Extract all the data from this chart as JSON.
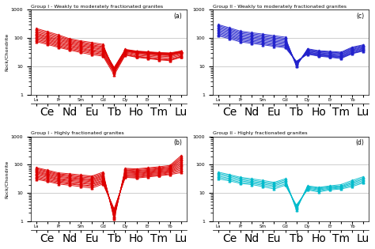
{
  "panels": [
    {
      "label": "(a)",
      "title": "Group I - Weakly to moderately fractionated granites",
      "color": "#dd0000",
      "ylim": [
        1,
        1000
      ],
      "data": [
        [
          220,
          170,
          130,
          95,
          80,
          70,
          60,
          6,
          35,
          30,
          28,
          26,
          25,
          30
        ],
        [
          200,
          155,
          118,
          88,
          74,
          63,
          55,
          7,
          37,
          32,
          30,
          28,
          27,
          32
        ],
        [
          180,
          140,
          108,
          82,
          68,
          58,
          50,
          8,
          39,
          34,
          32,
          30,
          29,
          34
        ],
        [
          165,
          128,
          98,
          76,
          63,
          54,
          47,
          8,
          38,
          33,
          31,
          29,
          28,
          33
        ],
        [
          150,
          116,
          90,
          71,
          58,
          50,
          43,
          9,
          40,
          35,
          33,
          31,
          30,
          35
        ],
        [
          140,
          108,
          83,
          66,
          54,
          46,
          40,
          9,
          38,
          33,
          31,
          29,
          28,
          33
        ],
        [
          128,
          100,
          76,
          61,
          50,
          43,
          37,
          9,
          36,
          31,
          29,
          27,
          26,
          31
        ],
        [
          118,
          92,
          70,
          56,
          46,
          39,
          34,
          8,
          34,
          29,
          27,
          25,
          24,
          29
        ],
        [
          108,
          85,
          65,
          52,
          43,
          36,
          32,
          7,
          32,
          27,
          25,
          23,
          22,
          27
        ],
        [
          98,
          78,
          60,
          48,
          40,
          34,
          29,
          7,
          30,
          25,
          23,
          21,
          20,
          25
        ],
        [
          90,
          72,
          55,
          44,
          37,
          31,
          27,
          6,
          28,
          23,
          21,
          19,
          18,
          23
        ],
        [
          82,
          66,
          51,
          41,
          34,
          29,
          25,
          6,
          26,
          22,
          20,
          18,
          17,
          22
        ],
        [
          75,
          60,
          47,
          38,
          31,
          26,
          23,
          5,
          25,
          21,
          19,
          17,
          16,
          21
        ]
      ]
    },
    {
      "label": "(b)",
      "title": "Group I - Highly fractionated granites",
      "color": "#dd0000",
      "ylim": [
        1,
        1000
      ],
      "data": [
        [
          80,
          65,
          52,
          48,
          44,
          40,
          55,
          1.2,
          75,
          72,
          78,
          85,
          95,
          210
        ],
        [
          75,
          60,
          48,
          44,
          40,
          37,
          50,
          1.3,
          70,
          67,
          73,
          79,
          88,
          185
        ],
        [
          70,
          56,
          45,
          41,
          37,
          34,
          46,
          1.4,
          65,
          62,
          68,
          74,
          82,
          165
        ],
        [
          65,
          52,
          42,
          38,
          34,
          31,
          43,
          1.5,
          62,
          59,
          64,
          70,
          78,
          148
        ],
        [
          60,
          48,
          39,
          35,
          32,
          29,
          40,
          1.6,
          58,
          55,
          60,
          66,
          73,
          132
        ],
        [
          56,
          45,
          36,
          33,
          30,
          27,
          37,
          1.8,
          55,
          52,
          57,
          62,
          69,
          118
        ],
        [
          52,
          42,
          33,
          30,
          28,
          25,
          34,
          1.9,
          52,
          49,
          54,
          58,
          65,
          105
        ],
        [
          48,
          39,
          31,
          28,
          26,
          23,
          32,
          2.0,
          49,
          46,
          51,
          55,
          61,
          94
        ],
        [
          44,
          36,
          29,
          26,
          24,
          21,
          29,
          2.1,
          46,
          43,
          48,
          52,
          58,
          84
        ],
        [
          40,
          33,
          27,
          24,
          22,
          20,
          27,
          2.3,
          43,
          41,
          45,
          49,
          55,
          75
        ],
        [
          37,
          30,
          25,
          22,
          20,
          18,
          25,
          2.4,
          41,
          38,
          42,
          46,
          52,
          67
        ],
        [
          34,
          28,
          23,
          21,
          19,
          17,
          23,
          2.6,
          38,
          36,
          40,
          43,
          48,
          60
        ],
        [
          31,
          26,
          21,
          19,
          17,
          15,
          21,
          2.8,
          36,
          34,
          37,
          41,
          45,
          53
        ]
      ]
    },
    {
      "label": "(c)",
      "title": "Group II - Weakly to moderately fractionated granites",
      "color": "#2222cc",
      "ylim": [
        1,
        1000
      ],
      "data": [
        [
          300,
          230,
          175,
          155,
          138,
          122,
          108,
          10,
          42,
          36,
          34,
          32,
          48,
          58
        ],
        [
          275,
          210,
          160,
          142,
          126,
          111,
          98,
          11,
          40,
          34,
          32,
          30,
          45,
          55
        ],
        [
          250,
          193,
          147,
          130,
          115,
          102,
          90,
          11,
          38,
          33,
          31,
          29,
          43,
          52
        ],
        [
          228,
          177,
          135,
          119,
          105,
          93,
          83,
          12,
          36,
          31,
          29,
          27,
          40,
          49
        ],
        [
          208,
          162,
          123,
          109,
          97,
          85,
          76,
          12,
          35,
          30,
          28,
          26,
          38,
          47
        ],
        [
          190,
          148,
          113,
          100,
          89,
          78,
          70,
          13,
          33,
          28,
          26,
          24,
          36,
          44
        ],
        [
          173,
          135,
          103,
          92,
          81,
          72,
          64,
          13,
          32,
          27,
          25,
          23,
          34,
          42
        ],
        [
          158,
          124,
          95,
          84,
          74,
          66,
          59,
          14,
          30,
          26,
          24,
          22,
          32,
          40
        ],
        [
          144,
          114,
          87,
          77,
          68,
          60,
          54,
          14,
          29,
          25,
          23,
          21,
          30,
          38
        ],
        [
          132,
          104,
          80,
          71,
          63,
          55,
          50,
          15,
          28,
          24,
          22,
          20,
          29,
          36
        ],
        [
          120,
          95,
          73,
          65,
          58,
          51,
          46,
          15,
          27,
          23,
          21,
          19,
          28,
          35
        ]
      ]
    },
    {
      "label": "(d)",
      "title": "Group II - Highly fractionated granites",
      "color": "#00bbcc",
      "ylim": [
        1,
        1000
      ],
      "data": [
        [
          55,
          45,
          36,
          32,
          28,
          24,
          32,
          2.5,
          18,
          16,
          18,
          20,
          28,
          38
        ],
        [
          50,
          41,
          33,
          29,
          25,
          22,
          29,
          2.8,
          17,
          15,
          17,
          18,
          25,
          34
        ],
        [
          45,
          37,
          30,
          26,
          23,
          20,
          26,
          3.0,
          16,
          14,
          16,
          17,
          23,
          31
        ],
        [
          40,
          33,
          27,
          24,
          21,
          18,
          24,
          3.2,
          15,
          13,
          15,
          16,
          21,
          28
        ],
        [
          36,
          30,
          24,
          22,
          19,
          16,
          21,
          3.5,
          14,
          12,
          14,
          15,
          19,
          25
        ],
        [
          32,
          27,
          22,
          20,
          17,
          14,
          19,
          3.8,
          13,
          11,
          13,
          14,
          17,
          23
        ]
      ]
    }
  ],
  "bg_color": "#ffffff",
  "grid_color": "#bbbbbb",
  "marker": "^",
  "markersize": 2.0,
  "linewidth": 0.7,
  "top_labels": [
    "La",
    "",
    "Pr",
    "",
    "Sm",
    "",
    "Gd",
    "",
    "Dy",
    "",
    "Er",
    "",
    "Yb",
    ""
  ],
  "bot_labels": [
    "",
    "Ce",
    "",
    "Nd",
    "",
    "Eu",
    "",
    "Tb",
    "",
    "Ho",
    "",
    "Tm",
    "",
    "Lu"
  ]
}
